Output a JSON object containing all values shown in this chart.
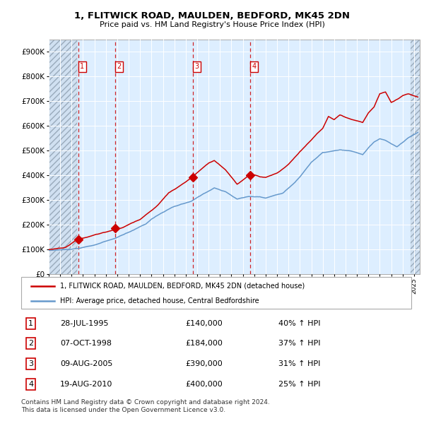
{
  "title": "1, FLITWICK ROAD, MAULDEN, BEDFORD, MK45 2DN",
  "subtitle": "Price paid vs. HM Land Registry's House Price Index (HPI)",
  "hpi_color": "#6699cc",
  "price_color": "#cc0000",
  "background_color": "#ffffff",
  "plot_bg_color": "#ddeeff",
  "ylim": [
    0,
    950000
  ],
  "yticks": [
    0,
    100000,
    200000,
    300000,
    400000,
    500000,
    600000,
    700000,
    800000,
    900000
  ],
  "ytick_labels": [
    "£0",
    "£100K",
    "£200K",
    "£300K",
    "£400K",
    "£500K",
    "£600K",
    "£700K",
    "£800K",
    "£900K"
  ],
  "sale_year_nums": [
    1995.58,
    1998.83,
    2005.62,
    2010.63
  ],
  "sale_prices": [
    140000,
    184000,
    390000,
    400000
  ],
  "sale_labels": [
    "1",
    "2",
    "3",
    "4"
  ],
  "hatch_left_end": 1995.5,
  "hatch_right_start": 2024.7,
  "xlim_start": 1993.0,
  "xlim_end": 2025.5,
  "legend_entries": [
    "1, FLITWICK ROAD, MAULDEN, BEDFORD, MK45 2DN (detached house)",
    "HPI: Average price, detached house, Central Bedfordshire"
  ],
  "table_rows": [
    [
      "1",
      "28-JUL-1995",
      "£140,000",
      "40% ↑ HPI"
    ],
    [
      "2",
      "07-OCT-1998",
      "£184,000",
      "37% ↑ HPI"
    ],
    [
      "3",
      "09-AUG-2005",
      "£390,000",
      "31% ↑ HPI"
    ],
    [
      "4",
      "19-AUG-2010",
      "£400,000",
      "25% ↑ HPI"
    ]
  ],
  "footnote": "Contains HM Land Registry data © Crown copyright and database right 2024.\nThis data is licensed under the Open Government Licence v3.0."
}
